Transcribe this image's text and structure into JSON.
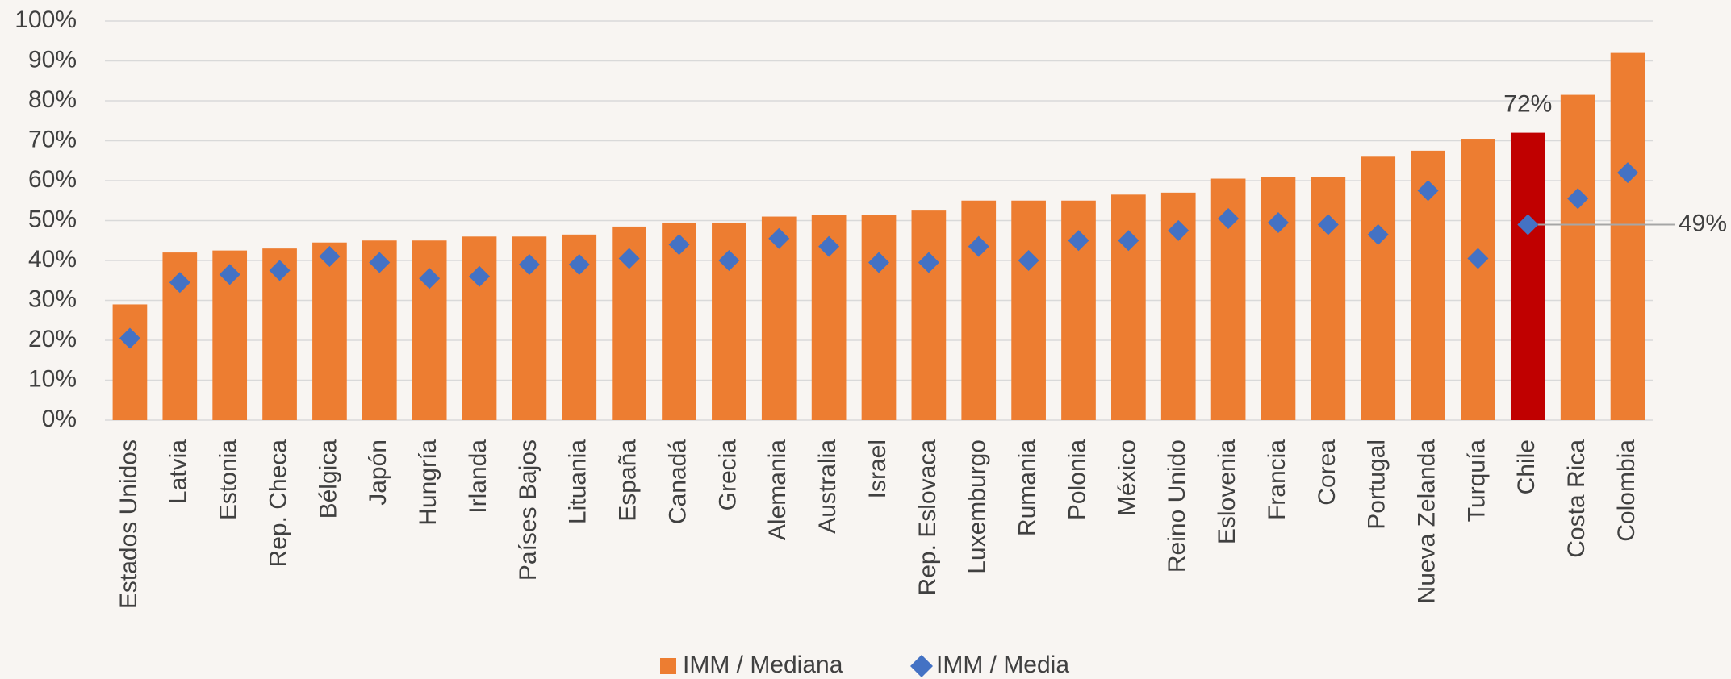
{
  "chart_data": {
    "type": "bar",
    "categories": [
      "Estados Unidos",
      "Latvia",
      "Estonia",
      "Rep. Checa",
      "Bélgica",
      "Japón",
      "Hungría",
      "Irlanda",
      "Países Bajos",
      "Lituania",
      "España",
      "Canadá",
      "Grecia",
      "Alemania",
      "Australia",
      "Israel",
      "Rep. Eslovaca",
      "Luxemburgo",
      "Rumania",
      "Polonia",
      "México",
      "Reino Unido",
      "Eslovenia",
      "Francia",
      "Corea",
      "Portugal",
      "Nueva Zelanda",
      "Turquía",
      "Chile",
      "Costa Rica",
      "Colombia"
    ],
    "series": [
      {
        "name": "IMM / Mediana",
        "color": "#ed7d31",
        "highlight_color": "#c00000",
        "values": [
          29,
          42,
          42.5,
          43,
          44.5,
          45,
          45,
          46,
          46,
          46.5,
          48.5,
          49.5,
          49.5,
          51,
          51.5,
          51.5,
          52.5,
          55,
          55,
          55,
          56.5,
          57,
          60.5,
          61,
          61,
          66,
          67.5,
          70.5,
          72,
          81.5,
          92
        ],
        "value_labels": [
          null,
          null,
          null,
          null,
          null,
          null,
          null,
          null,
          null,
          null,
          null,
          null,
          null,
          null,
          null,
          null,
          null,
          null,
          null,
          null,
          null,
          null,
          null,
          null,
          null,
          null,
          null,
          null,
          "72%",
          null,
          null
        ]
      },
      {
        "name": "IMM / Media",
        "color": "#4472c4",
        "marker": "diamond",
        "values": [
          20.5,
          34.5,
          36.5,
          37.5,
          41,
          39.5,
          35.5,
          36,
          39,
          39,
          40.5,
          44,
          40,
          45.5,
          43.5,
          39.5,
          39.5,
          43.5,
          40,
          45,
          45,
          47.5,
          50.5,
          49.5,
          49,
          46.5,
          57.5,
          40.5,
          49,
          55.5,
          62
        ],
        "value_labels": [
          null,
          null,
          null,
          null,
          null,
          null,
          null,
          null,
          null,
          null,
          null,
          null,
          null,
          null,
          null,
          null,
          null,
          null,
          null,
          null,
          null,
          null,
          null,
          null,
          null,
          null,
          null,
          null,
          "49%",
          null,
          null
        ]
      }
    ],
    "ylim": [
      0,
      100
    ],
    "yticks": [
      {
        "value": 0,
        "label": "0%"
      },
      {
        "value": 10,
        "label": "10%"
      },
      {
        "value": 20,
        "label": "20%"
      },
      {
        "value": 30,
        "label": "30%"
      },
      {
        "value": 40,
        "label": "40%"
      },
      {
        "value": 50,
        "label": "50%"
      },
      {
        "value": 60,
        "label": "60%"
      },
      {
        "value": 70,
        "label": "70%"
      },
      {
        "value": 80,
        "label": "80%"
      },
      {
        "value": 90,
        "label": "90%"
      },
      {
        "value": 100,
        "label": "100%"
      }
    ],
    "grid": true,
    "legend": "bottom"
  }
}
